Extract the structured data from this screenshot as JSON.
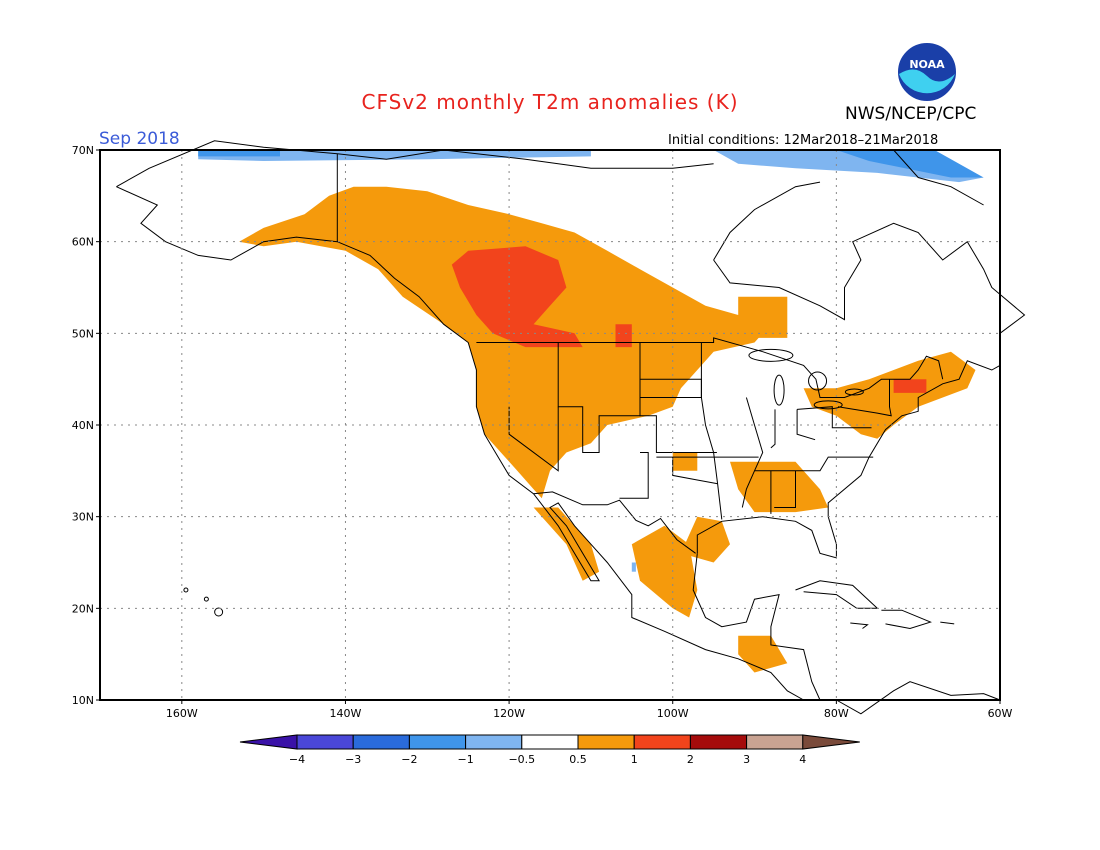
{
  "title": "CFSv2 monthly T2m anomalies (K)",
  "agency": "NWS/NCEP/CPC",
  "logo_text": "NOAA",
  "valid_month": "Sep 2018",
  "initial_conditions": "Initial conditions: 12Mar2018–21Mar2018",
  "map": {
    "lat_labels": [
      "70N",
      "60N",
      "50N",
      "40N",
      "30N",
      "20N",
      "10N"
    ],
    "lon_labels": [
      "160W",
      "140W",
      "120W",
      "100W",
      "80W",
      "60W"
    ]
  },
  "legend": {
    "labels": [
      "−4",
      "−3",
      "−2",
      "−1",
      "−0.5",
      "0.5",
      "1",
      "2",
      "3",
      "4"
    ],
    "colors": [
      "#3a12a8",
      "#4a47d8",
      "#2a6bdb",
      "#3f95ea",
      "#7fb5f0",
      "#ffffff",
      "#f59a0c",
      "#f2441c",
      "#a50b0b",
      "#c9a392",
      "#7a4a3a"
    ]
  },
  "colors": {
    "warm_1": "#f59a0c",
    "warm_2": "#f2441c",
    "cool_1": "#7fb5f0",
    "cool_2": "#3f95ea",
    "title": "#e8231e",
    "date": "#3b5bd8"
  }
}
